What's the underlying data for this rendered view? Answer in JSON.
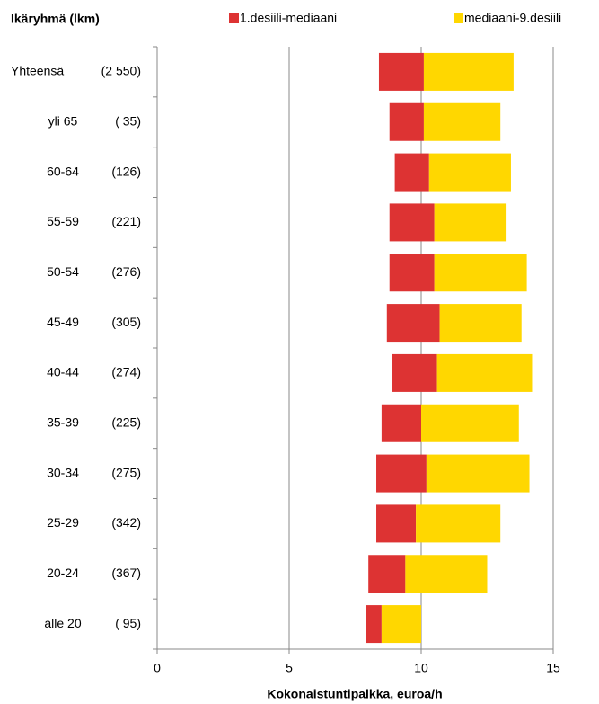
{
  "chart_data": {
    "type": "floating_bar",
    "y_title": "Ikäryhmä (lkm)",
    "x_title": "Kokonaistuntipalkka, euroa/h",
    "categories": [
      "Yhteensä",
      "yli 65",
      "60-64",
      "55-59",
      "50-54",
      "45-49",
      "40-44",
      "35-39",
      "30-34",
      "25-29",
      "20-24",
      "alle 20"
    ],
    "group_sizes": [
      "(2 550)",
      "( 35)",
      "(126)",
      "(221)",
      "(276)",
      "(305)",
      "(274)",
      "(225)",
      "(275)",
      "(342)",
      "(367)",
      "( 95)"
    ],
    "series": [
      {
        "name": "1.desiili-mediaani",
        "color": "#dd3333",
        "values": [
          [
            8.4,
            10.1
          ],
          [
            8.8,
            10.1
          ],
          [
            9.0,
            10.3
          ],
          [
            8.8,
            10.5
          ],
          [
            8.8,
            10.5
          ],
          [
            8.7,
            10.7
          ],
          [
            8.9,
            10.6
          ],
          [
            8.5,
            10.0
          ],
          [
            8.3,
            10.2
          ],
          [
            8.3,
            9.8
          ],
          [
            8.0,
            9.4
          ],
          [
            7.9,
            8.5
          ]
        ]
      },
      {
        "name": "mediaani-9.desiili",
        "color": "#ffd700",
        "values": [
          [
            10.1,
            13.5
          ],
          [
            10.1,
            13.0
          ],
          [
            10.3,
            13.4
          ],
          [
            10.5,
            13.2
          ],
          [
            10.5,
            14.0
          ],
          [
            10.7,
            13.8
          ],
          [
            10.6,
            14.2
          ],
          [
            10.0,
            13.7
          ],
          [
            10.2,
            14.1
          ],
          [
            9.8,
            13.0
          ],
          [
            9.4,
            12.5
          ],
          [
            8.5,
            10.0
          ]
        ]
      }
    ],
    "xlim": [
      0,
      15
    ],
    "xticks": [
      0,
      5,
      10,
      15
    ],
    "grid": true
  }
}
